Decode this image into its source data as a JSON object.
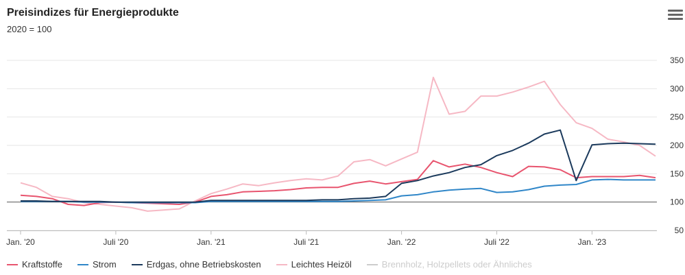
{
  "header": {
    "title": "Preisindizes für Energieprodukte",
    "subtitle": "2020 = 100",
    "menu_icon": "hamburger-menu-icon"
  },
  "chart_data": {
    "type": "line",
    "title": "Preisindizes für Energieprodukte",
    "subtitle": "2020 = 100",
    "ylim": [
      50,
      350
    ],
    "yticks": [
      50,
      100,
      150,
      200,
      250,
      300,
      350
    ],
    "reference_line": 100,
    "grid": true,
    "x_tick_labels": [
      "Jan. '20",
      "Juli '20",
      "Jan. '21",
      "Juli '21",
      "Jan. '22",
      "Juli '22",
      "Jan. '23"
    ],
    "x_tick_months": [
      0,
      6,
      12,
      18,
      24,
      30,
      36
    ],
    "x_months": [
      0,
      1,
      2,
      3,
      4,
      5,
      6,
      7,
      8,
      9,
      10,
      11,
      12,
      13,
      14,
      15,
      16,
      17,
      18,
      19,
      20,
      21,
      22,
      23,
      24,
      25,
      26,
      27,
      28,
      29,
      30,
      31,
      32,
      33,
      34,
      35,
      36,
      37,
      38,
      39,
      40
    ],
    "legend_position": "bottom",
    "series": [
      {
        "name": "Kraftstoffe",
        "color": "#e8546e",
        "visible": true,
        "values": [
          112,
          110,
          106,
          96,
          94,
          99,
          100,
          99,
          98,
          97,
          96,
          100,
          110,
          113,
          118,
          119,
          120,
          122,
          125,
          126,
          126,
          133,
          137,
          132,
          136,
          140,
          173,
          162,
          167,
          161,
          152,
          145,
          163,
          162,
          157,
          143,
          145,
          145,
          145,
          147,
          143
        ]
      },
      {
        "name": "Strom",
        "color": "#2f86c8",
        "visible": true,
        "values": [
          101,
          101,
          101,
          101,
          100,
          100,
          100,
          99,
          99,
          99,
          99,
          99,
          101,
          101,
          101,
          101,
          101,
          101,
          101,
          101,
          101,
          102,
          103,
          104,
          111,
          113,
          118,
          121,
          123,
          124,
          117,
          118,
          122,
          128,
          130,
          131,
          139,
          140,
          139,
          139,
          139
        ]
      },
      {
        "name": "Erdgas, ohne Betriebskosten",
        "color": "#1b3a5c",
        "visible": true,
        "values": [
          102,
          102,
          101,
          101,
          101,
          101,
          100,
          100,
          100,
          100,
          100,
          100,
          103,
          103,
          103,
          103,
          103,
          103,
          103,
          104,
          104,
          106,
          107,
          110,
          133,
          138,
          146,
          152,
          161,
          166,
          182,
          191,
          204,
          220,
          227,
          138,
          201,
          203,
          204,
          203,
          202
        ]
      },
      {
        "name": "Leichtes Heizöl",
        "color": "#f6b8c4",
        "visible": true,
        "values": [
          134,
          126,
          110,
          106,
          99,
          96,
          93,
          90,
          84,
          86,
          88,
          102,
          115,
          123,
          132,
          129,
          134,
          138,
          141,
          139,
          146,
          171,
          175,
          164,
          176,
          188,
          320,
          255,
          260,
          287,
          287,
          294,
          303,
          313,
          272,
          240,
          230,
          211,
          206,
          200,
          181
        ]
      },
      {
        "name": "Brennholz, Holzpellets oder Ähnliches",
        "color": "#cccccc",
        "visible": false,
        "values": []
      }
    ]
  }
}
